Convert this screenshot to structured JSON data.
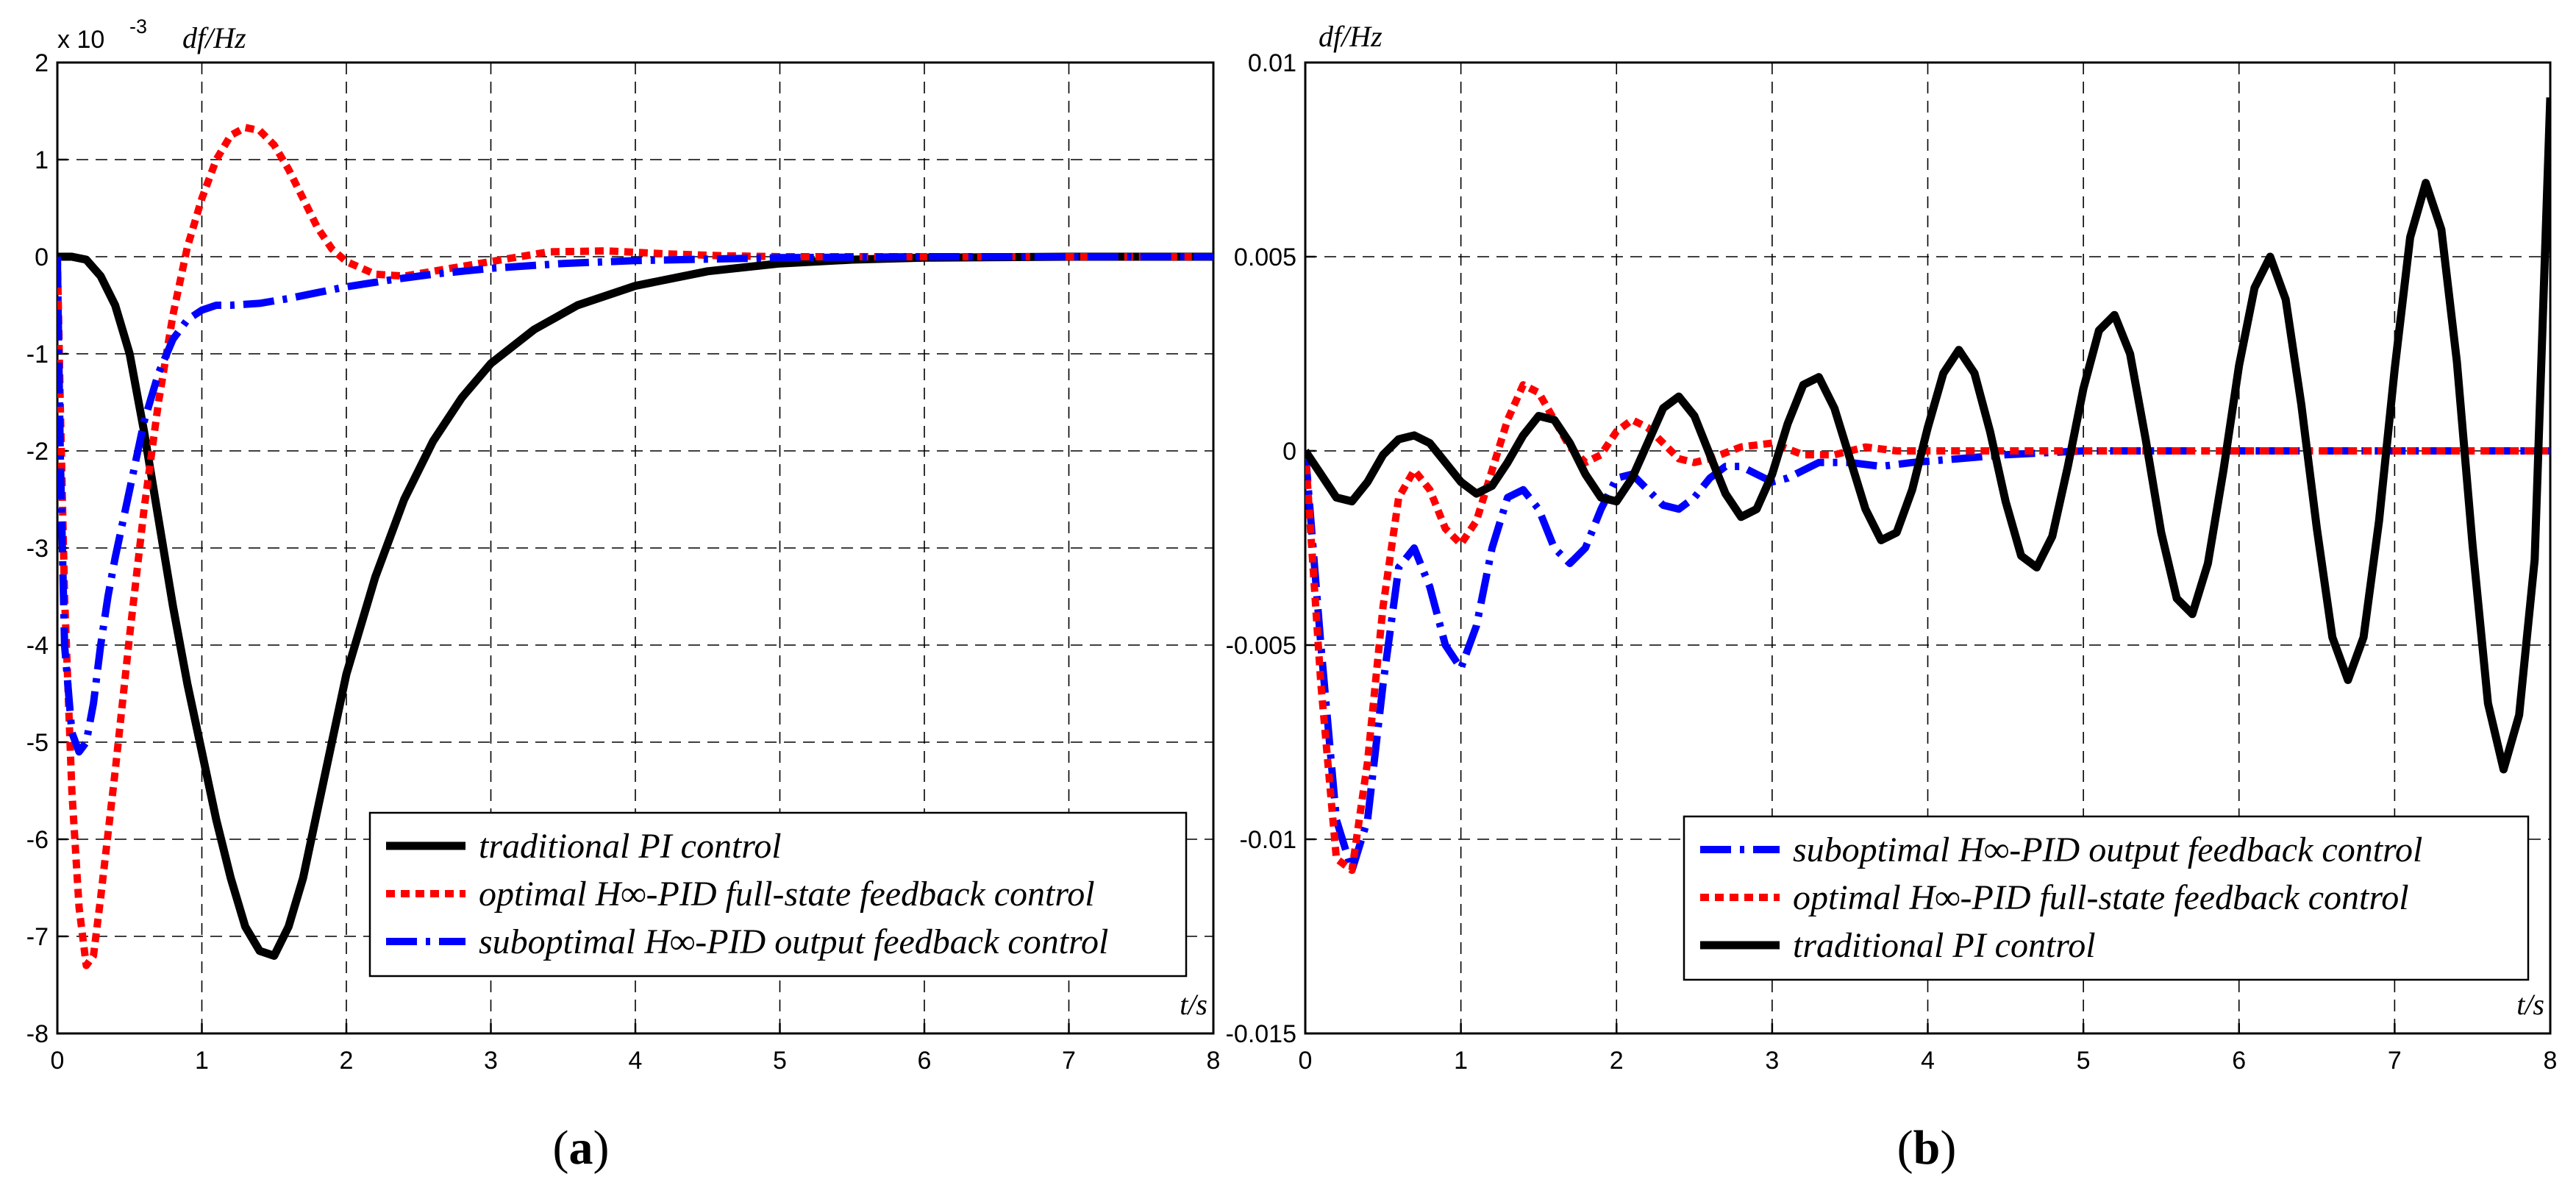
{
  "chart_data": [
    {
      "id": "a",
      "type": "line",
      "panel_label": "a",
      "ylabel": "df/Hz",
      "y_multiplier": "x 10",
      "y_exponent": "-3",
      "xlabel": "t/s",
      "xlim": [
        0,
        8
      ],
      "ylim": [
        -8,
        2
      ],
      "xticks": [
        "0",
        "1",
        "2",
        "3",
        "4",
        "5",
        "6",
        "7",
        "8"
      ],
      "yticks": [
        "2",
        "1",
        "0",
        "-1",
        "-2",
        "-3",
        "-4",
        "-5",
        "-6",
        "-7",
        "-8"
      ],
      "grid": true,
      "legend_position": "lower-right",
      "legend_order": [
        "traditional",
        "optimal",
        "suboptimal"
      ],
      "series": [
        {
          "key": "traditional",
          "name": "traditional PI control",
          "color": "#000000",
          "style": "solid",
          "x": [
            0,
            0.1,
            0.2,
            0.3,
            0.4,
            0.5,
            0.6,
            0.7,
            0.8,
            0.9,
            1.0,
            1.1,
            1.2,
            1.3,
            1.4,
            1.5,
            1.6,
            1.7,
            1.8,
            1.9,
            2.0,
            2.2,
            2.4,
            2.6,
            2.8,
            3.0,
            3.3,
            3.6,
            4.0,
            4.5,
            5.0,
            5.5,
            6.0,
            7.0,
            8.0
          ],
          "y": [
            0,
            0,
            -0.03,
            -0.2,
            -0.5,
            -1.0,
            -1.8,
            -2.7,
            -3.6,
            -4.4,
            -5.1,
            -5.8,
            -6.4,
            -6.9,
            -7.15,
            -7.2,
            -6.9,
            -6.4,
            -5.7,
            -5.0,
            -4.3,
            -3.3,
            -2.5,
            -1.9,
            -1.45,
            -1.1,
            -0.75,
            -0.5,
            -0.3,
            -0.15,
            -0.07,
            -0.03,
            -0.01,
            0,
            0
          ]
        },
        {
          "key": "optimal",
          "name": "optimal H∞-PID full-state feedback control",
          "color": "#ff0000",
          "style": "dotted",
          "x": [
            0,
            0.02,
            0.05,
            0.1,
            0.15,
            0.2,
            0.25,
            0.3,
            0.4,
            0.5,
            0.6,
            0.7,
            0.8,
            0.9,
            1.0,
            1.1,
            1.2,
            1.3,
            1.4,
            1.5,
            1.6,
            1.7,
            1.8,
            1.9,
            2.0,
            2.2,
            2.4,
            2.6,
            3.0,
            3.4,
            3.8,
            4.2,
            4.6,
            5.0,
            6.0,
            7.0,
            8.0
          ],
          "y": [
            0,
            -1.5,
            -3.5,
            -5.5,
            -6.7,
            -7.3,
            -7.2,
            -6.6,
            -5.3,
            -3.9,
            -2.6,
            -1.5,
            -0.6,
            0.1,
            0.6,
            1.0,
            1.25,
            1.33,
            1.3,
            1.15,
            0.9,
            0.6,
            0.3,
            0.08,
            -0.05,
            -0.18,
            -0.2,
            -0.15,
            -0.05,
            0.05,
            0.06,
            0.03,
            0.01,
            0,
            0,
            0,
            0
          ]
        },
        {
          "key": "suboptimal",
          "name": "suboptimal H∞-PID output feedback control",
          "color": "#0000ff",
          "style": "dashdot",
          "x": [
            0,
            0.02,
            0.05,
            0.1,
            0.15,
            0.2,
            0.25,
            0.3,
            0.35,
            0.4,
            0.5,
            0.6,
            0.7,
            0.8,
            0.9,
            1.0,
            1.1,
            1.2,
            1.4,
            1.6,
            1.8,
            2.0,
            2.3,
            2.6,
            3.0,
            3.5,
            4.0,
            5.0,
            6.0,
            7.0,
            8.0
          ],
          "y": [
            0,
            -2.0,
            -4.0,
            -4.9,
            -5.1,
            -5.0,
            -4.6,
            -4.0,
            -3.5,
            -3.1,
            -2.4,
            -1.7,
            -1.2,
            -0.85,
            -0.65,
            -0.55,
            -0.5,
            -0.5,
            -0.48,
            -0.43,
            -0.37,
            -0.31,
            -0.24,
            -0.18,
            -0.12,
            -0.07,
            -0.04,
            -0.01,
            0,
            0,
            0
          ]
        }
      ]
    },
    {
      "id": "b",
      "type": "line",
      "panel_label": "b",
      "ylabel": "df/Hz",
      "xlabel": "t/s",
      "xlim": [
        0,
        8
      ],
      "ylim": [
        -0.015,
        0.01
      ],
      "xticks": [
        "0",
        "1",
        "2",
        "3",
        "4",
        "5",
        "6",
        "7",
        "8"
      ],
      "yticks": [
        "0.01",
        "0.005",
        "0",
        "-0.005",
        "-0.01",
        "-0.015"
      ],
      "grid": true,
      "legend_position": "lower-right",
      "legend_order": [
        "suboptimal",
        "optimal",
        "traditional"
      ],
      "series": [
        {
          "key": "suboptimal",
          "name": "suboptimal H∞-PID output feedback control",
          "color": "#0000ff",
          "style": "dashdot",
          "x": [
            0,
            0.1,
            0.2,
            0.3,
            0.4,
            0.5,
            0.6,
            0.7,
            0.8,
            0.9,
            1.0,
            1.1,
            1.2,
            1.3,
            1.4,
            1.5,
            1.6,
            1.7,
            1.8,
            1.9,
            2.0,
            2.1,
            2.2,
            2.3,
            2.4,
            2.5,
            2.6,
            2.7,
            2.8,
            2.9,
            3.0,
            3.1,
            3.2,
            3.3,
            3.5,
            3.7,
            3.9,
            4.2,
            4.5,
            5.0,
            6.0,
            7.0,
            8.0
          ],
          "y": [
            0,
            -0.005,
            -0.0095,
            -0.0108,
            -0.0095,
            -0.006,
            -0.003,
            -0.0025,
            -0.0035,
            -0.005,
            -0.0056,
            -0.0045,
            -0.0025,
            -0.0012,
            -0.001,
            -0.0015,
            -0.0025,
            -0.0029,
            -0.0025,
            -0.0015,
            -0.0007,
            -0.0006,
            -0.001,
            -0.0014,
            -0.0015,
            -0.0012,
            -0.0007,
            -0.0004,
            -0.0004,
            -0.0006,
            -0.0008,
            -0.0007,
            -0.0005,
            -0.0003,
            -0.0003,
            -0.0004,
            -0.0003,
            -0.0002,
            -0.0001,
            0,
            0,
            0,
            0
          ]
        },
        {
          "key": "optimal",
          "name": "optimal H∞-PID full-state feedback control",
          "color": "#ff0000",
          "style": "dotted",
          "x": [
            0,
            0.1,
            0.2,
            0.3,
            0.4,
            0.5,
            0.6,
            0.7,
            0.8,
            0.9,
            1.0,
            1.1,
            1.2,
            1.3,
            1.4,
            1.5,
            1.6,
            1.7,
            1.8,
            1.9,
            2.0,
            2.1,
            2.2,
            2.3,
            2.4,
            2.5,
            2.6,
            2.8,
            3.0,
            3.2,
            3.4,
            3.6,
            3.8,
            4.0,
            5.0,
            6.0,
            7.0,
            8.0
          ],
          "y": [
            0,
            -0.006,
            -0.0105,
            -0.0108,
            -0.008,
            -0.004,
            -0.0012,
            -0.0005,
            -0.001,
            -0.002,
            -0.0024,
            -0.0018,
            -0.0005,
            0.0008,
            0.0017,
            0.0015,
            0.0008,
            0.0001,
            -0.0003,
            -0.0001,
            0.0005,
            0.0008,
            0.0006,
            0.0002,
            -0.0002,
            -0.0003,
            -0.0002,
            0.0001,
            0.0002,
            -0.0001,
            -0.0001,
            0.0001,
            0,
            0,
            0,
            0,
            0,
            0
          ]
        },
        {
          "key": "traditional",
          "name": "traditional PI control",
          "color": "#000000",
          "style": "solid",
          "x": [
            0,
            0.1,
            0.2,
            0.3,
            0.4,
            0.5,
            0.6,
            0.7,
            0.8,
            0.9,
            1.0,
            1.1,
            1.2,
            1.3,
            1.4,
            1.5,
            1.6,
            1.7,
            1.8,
            1.9,
            2.0,
            2.1,
            2.2,
            2.3,
            2.4,
            2.5,
            2.6,
            2.7,
            2.8,
            2.9,
            3.0,
            3.1,
            3.2,
            3.3,
            3.4,
            3.5,
            3.6,
            3.7,
            3.8,
            3.9,
            4.0,
            4.1,
            4.2,
            4.3,
            4.4,
            4.5,
            4.6,
            4.7,
            4.8,
            4.9,
            5.0,
            5.1,
            5.2,
            5.3,
            5.4,
            5.5,
            5.6,
            5.7,
            5.8,
            5.9,
            6.0,
            6.1,
            6.2,
            6.3,
            6.4,
            6.5,
            6.6,
            6.7,
            6.8,
            6.9,
            7.0,
            7.1,
            7.2,
            7.3,
            7.4,
            7.5,
            7.6,
            7.7,
            7.8,
            7.9,
            8.0
          ],
          "y": [
            0,
            -0.0006,
            -0.0012,
            -0.0013,
            -0.0008,
            -0.0001,
            0.0003,
            0.0004,
            0.0002,
            -0.0003,
            -0.0008,
            -0.0011,
            -0.0009,
            -0.0003,
            0.0004,
            0.0009,
            0.0008,
            0.0002,
            -0.0006,
            -0.0012,
            -0.0013,
            -0.0007,
            0.0002,
            0.0011,
            0.0014,
            0.0009,
            -0.0001,
            -0.0011,
            -0.0017,
            -0.0015,
            -0.0006,
            0.0007,
            0.0017,
            0.0019,
            0.0011,
            -0.0002,
            -0.0015,
            -0.0023,
            -0.0021,
            -0.001,
            0.0006,
            0.002,
            0.0026,
            0.002,
            0.0005,
            -0.0013,
            -0.0027,
            -0.003,
            -0.0022,
            -0.0004,
            0.0016,
            0.0031,
            0.0035,
            0.0025,
            0.0003,
            -0.0021,
            -0.0038,
            -0.0042,
            -0.0029,
            -0.0005,
            0.0022,
            0.0042,
            0.005,
            0.0039,
            0.0012,
            -0.002,
            -0.0048,
            -0.0059,
            -0.0048,
            -0.0018,
            0.0021,
            0.0055,
            0.0069,
            0.0057,
            0.0023,
            -0.0024,
            -0.0065,
            -0.0082,
            -0.0068,
            -0.0028,
            0.0091
          ]
        }
      ]
    }
  ]
}
